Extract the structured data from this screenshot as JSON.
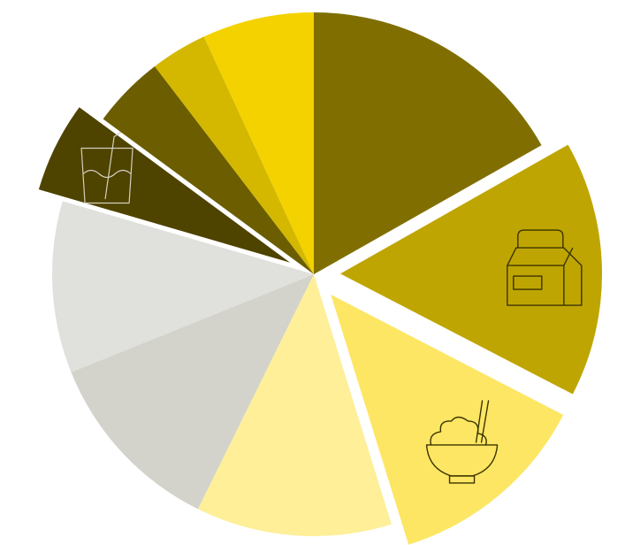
{
  "chart_data": {
    "type": "pie",
    "legend": "none",
    "title": "",
    "slices": [
      {
        "value": 16.8,
        "color": "#806f00",
        "exploded": false,
        "icon": null
      },
      {
        "value": 15.8,
        "color": "#bfa502",
        "exploded": true,
        "icon": "milk-carton-icon"
      },
      {
        "value": 12.6,
        "color": "#fde663",
        "exploded": true,
        "icon": "rice-bowl-icon"
      },
      {
        "value": 12.1,
        "color": "#feef98",
        "exploded": false,
        "icon": null
      },
      {
        "value": 11.6,
        "color": "#d3d3cb",
        "exploded": false,
        "icon": null
      },
      {
        "value": 10.6,
        "color": "#e0e0dc",
        "exploded": false,
        "icon": null
      },
      {
        "value": 5.6,
        "color": "#4f4300",
        "exploded": true,
        "icon": "drink-cup-icon"
      },
      {
        "value": 4.5,
        "color": "#6b5d00",
        "exploded": false,
        "icon": null
      },
      {
        "value": 3.5,
        "color": "#d4b800",
        "exploded": false,
        "icon": null
      },
      {
        "value": 6.9,
        "color": "#f4d200",
        "exploded": false,
        "icon": null
      }
    ]
  }
}
